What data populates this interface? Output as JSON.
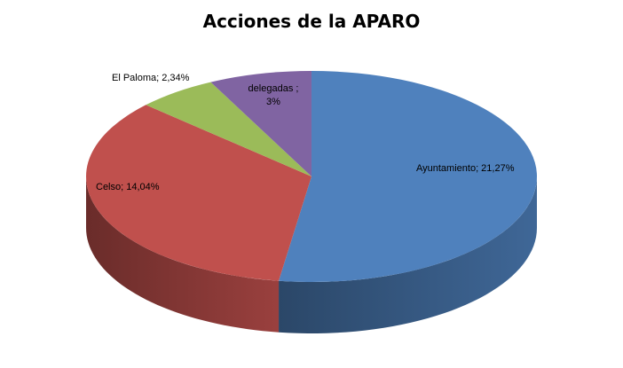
{
  "chart_data": {
    "type": "pie3d",
    "title": "Acciones de la APARO",
    "values": [
      21.27,
      14.04,
      2.34,
      3
    ],
    "value_labels": [
      "Ayuntamiento;  21,27%",
      "Celso; 14,04%",
      "El Paloma; 2,34%",
      "delegadas ; 3%"
    ],
    "colors": [
      "#4f81bd",
      "#c0504d",
      "#9bbb59",
      "#8064a2"
    ]
  }
}
